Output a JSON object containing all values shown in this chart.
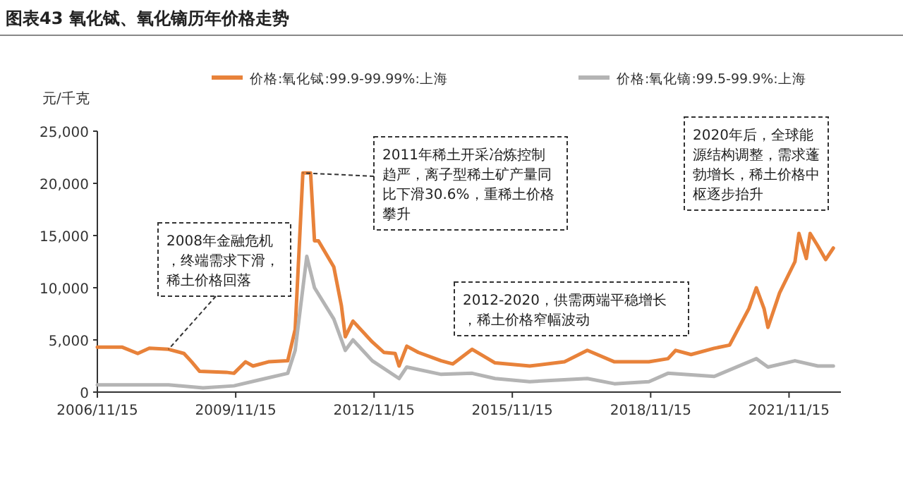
{
  "chart_data": {
    "type": "line",
    "title": "图表43   氧化铽、氧化镝历年价格走势",
    "ylabel": "元/千克",
    "legend": "top",
    "grid": false,
    "xlim": [
      "2006-11-15",
      "2022-12-31"
    ],
    "xticks": [
      {
        "value": "2006-11-15",
        "label": "2006/11/15"
      },
      {
        "value": "2009-11-15",
        "label": "2009/11/15"
      },
      {
        "value": "2012-11-15",
        "label": "2012/11/15"
      },
      {
        "value": "2015-11-15",
        "label": "2015/11/15"
      },
      {
        "value": "2018-11-15",
        "label": "2018/11/15"
      },
      {
        "value": "2021-11-15",
        "label": "2021/11/15"
      }
    ],
    "ylim": [
      0,
      25000
    ],
    "yticks": [
      {
        "value": 0,
        "label": "0"
      },
      {
        "value": 5000,
        "label": "5,000"
      },
      {
        "value": 10000,
        "label": "10,000"
      },
      {
        "value": 15000,
        "label": "15,000"
      },
      {
        "value": 20000,
        "label": "20,000"
      },
      {
        "value": 25000,
        "label": "25,000"
      }
    ],
    "series": [
      {
        "name": "价格:氧化铽:99.9-99.99%:上海",
        "color": "#e8823a",
        "x": [
          "2006-11-15",
          "2007-06",
          "2007-10",
          "2008-01",
          "2008-06",
          "2008-10",
          "2008-12",
          "2009-02",
          "2009-09",
          "2009-11",
          "2010-02",
          "2010-04",
          "2010-08",
          "2011-01",
          "2011-03",
          "2011-05",
          "2011-07",
          "2011-08",
          "2011-09",
          "2012-01",
          "2012-03",
          "2012-04",
          "2012-06",
          "2012-11",
          "2013-02",
          "2013-05",
          "2013-06",
          "2013-08",
          "2013-11",
          "2014-05",
          "2014-08",
          "2015-01",
          "2015-07",
          "2016-04",
          "2017-01",
          "2017-07",
          "2018-02",
          "2018-11",
          "2019-04",
          "2019-06",
          "2019-10",
          "2020-04",
          "2020-08",
          "2021-01",
          "2021-03",
          "2021-05",
          "2021-06",
          "2021-09",
          "2022-01",
          "2022-02",
          "2022-04",
          "2022-05",
          "2022-07",
          "2022-09",
          "2022-11"
        ],
        "values": [
          4300,
          4300,
          3700,
          4200,
          4100,
          3700,
          2900,
          2000,
          1900,
          1800,
          2900,
          2500,
          2900,
          3000,
          6000,
          21000,
          21000,
          14500,
          14500,
          12000,
          8300,
          5300,
          6800,
          4800,
          3800,
          3700,
          2500,
          4400,
          3800,
          3000,
          2700,
          4100,
          2800,
          2500,
          2900,
          4000,
          2900,
          2900,
          3200,
          4000,
          3600,
          4200,
          4500,
          8000,
          10000,
          8000,
          6200,
          9500,
          12500,
          15200,
          12800,
          15200,
          14000,
          12700,
          13800
        ]
      },
      {
        "name": "价格:氧化镝:99.5-99.9%:上海",
        "color": "#b4b4b4",
        "x": [
          "2006-11-15",
          "2008-06",
          "2009-03",
          "2009-11",
          "2010-06",
          "2011-01",
          "2011-03",
          "2011-06",
          "2011-08",
          "2012-01",
          "2012-04",
          "2012-06",
          "2012-11",
          "2013-06",
          "2013-08",
          "2014-05",
          "2015-01",
          "2015-07",
          "2016-04",
          "2017-07",
          "2018-02",
          "2018-11",
          "2019-04",
          "2020-04",
          "2021-03",
          "2021-06",
          "2022-01",
          "2022-07",
          "2022-11"
        ],
        "values": [
          700,
          700,
          400,
          600,
          1200,
          1800,
          4000,
          13000,
          10000,
          7000,
          4000,
          5000,
          3000,
          1300,
          2400,
          1700,
          1800,
          1300,
          1000,
          1300,
          800,
          1000,
          1800,
          1500,
          3200,
          2400,
          3000,
          2500,
          2500
        ]
      }
    ],
    "annotations": [
      {
        "text": "2008年金融危机，终端需求下滑，稀土价格回落",
        "x": "2008-06",
        "y": 4100
      },
      {
        "text": "2011年稀土开采冶炼控制趋严，离子型稀土矿产量同比下滑30.6%，重稀土价格攀升",
        "x": "2011-05",
        "y": 21000
      },
      "2012-2020，供需两端平稳增长，稀土价格窄幅波动",
      "2020年后，全球能源结构调整，需求蓬勃增长，稀土价格中枢逐步抬升"
    ]
  }
}
